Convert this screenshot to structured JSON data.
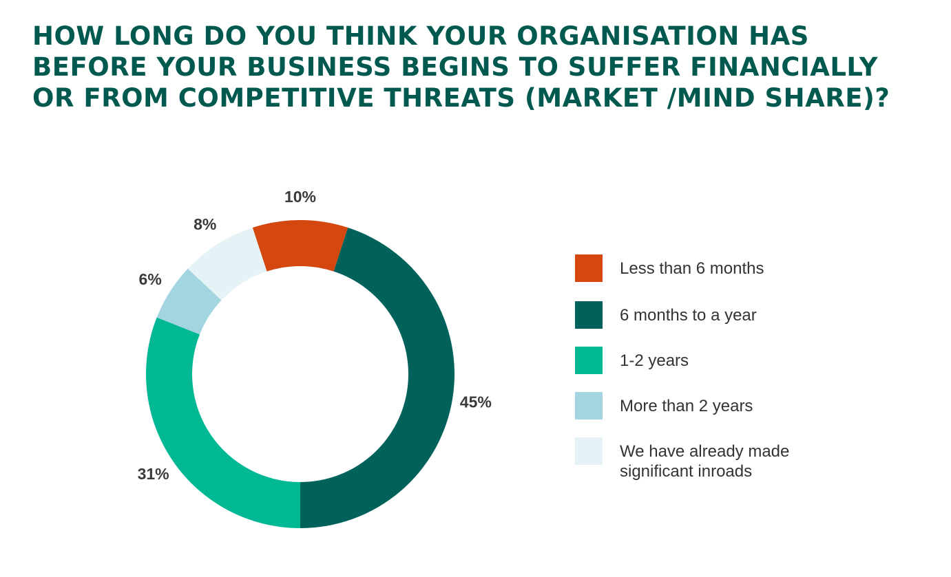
{
  "title_lines": [
    "HOW LONG DO YOU THINK YOUR ORGANISATION HAS",
    "BEFORE YOUR BUSINESS BEGINS TO SUFFER FINANCIALLY",
    "OR FROM COMPETITIVE THREATS (MARKET /MIND SHARE)?"
  ],
  "colors": {
    "title": "#00594f",
    "label": "#3a3a3a"
  },
  "chart_data": {
    "type": "pie",
    "variant": "donut",
    "title": "HOW LONG DO YOU THINK YOUR ORGANISATION HAS BEFORE YOUR BUSINESS BEGINS TO SUFFER FINANCIALLY OR FROM COMPETITIVE THREATS (MARKET /MIND SHARE)?",
    "legend_placement": "right",
    "categories": [
      "Less than 6 months",
      "6 months to a year",
      "1-2 years",
      "More than 2 years",
      "We have already made significant inroads"
    ],
    "values": [
      10,
      45,
      31,
      6,
      8
    ],
    "value_labels": [
      "10%",
      "45%",
      "31%",
      "6%",
      "8%"
    ],
    "colors": [
      "#d4470f",
      "#00625a",
      "#00b894",
      "#a3d5e0",
      "#e5f3f7"
    ],
    "legend_labels": [
      [
        "Less than 6 months"
      ],
      [
        "6 months to a year"
      ],
      [
        "1-2 years"
      ],
      [
        "More than 2 years"
      ],
      [
        "We have already made",
        "significant inroads"
      ]
    ]
  }
}
